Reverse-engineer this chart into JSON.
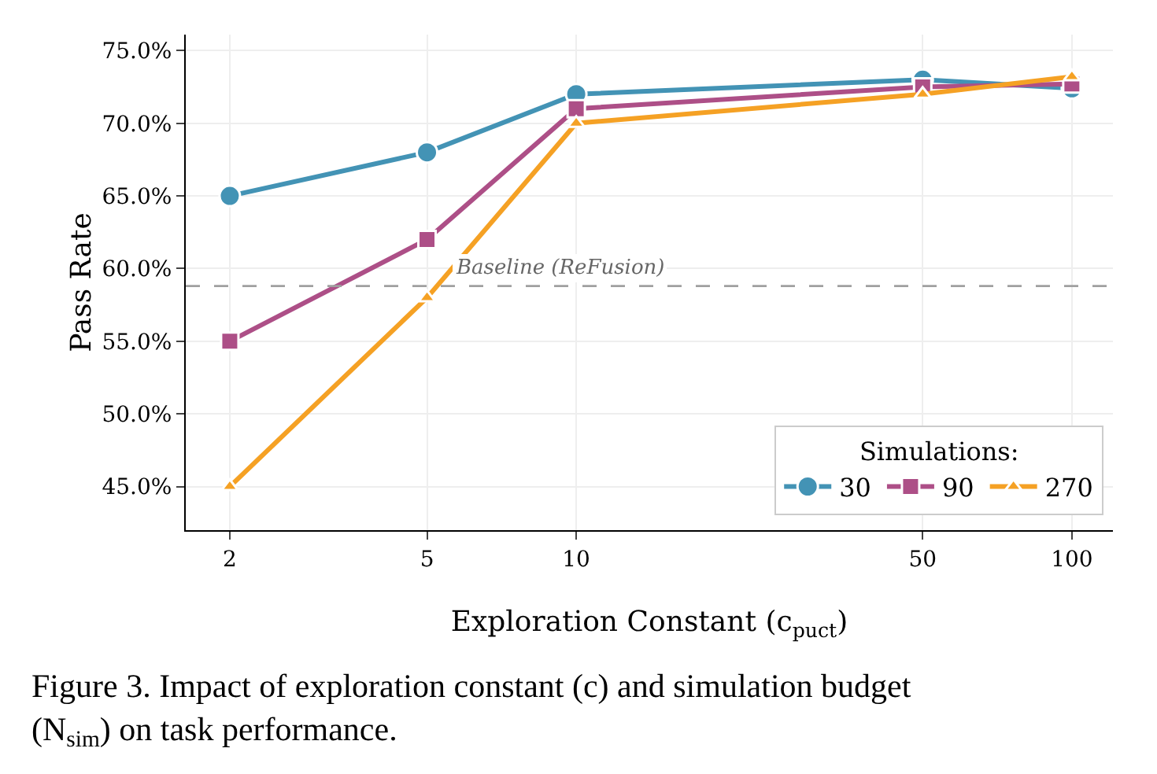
{
  "chart_data": {
    "type": "line",
    "xlabel": "Exploration Constant (c$_{puct}$)",
    "ylabel": "Pass Rate",
    "legend_title": "Simulations:",
    "legend": "bottom right",
    "grid": true,
    "log": "x",
    "line_style": "solid",
    "x": [
      2,
      5,
      10,
      50,
      100
    ],
    "xlim": [
      1.63,
      121
    ],
    "xticks": [
      2,
      5,
      10,
      50,
      100
    ],
    "ylim": [
      42,
      76.1
    ],
    "yticks": [
      {
        "value": 45,
        "label": "45.0%"
      },
      {
        "value": 50,
        "label": "50.0%"
      },
      {
        "value": 55,
        "label": "55.0%"
      },
      {
        "value": 60,
        "label": "60.0%"
      },
      {
        "value": 65,
        "label": "65.0%"
      },
      {
        "value": 70,
        "label": "70.0%"
      },
      {
        "value": 75,
        "label": "75.0%"
      }
    ],
    "series": [
      {
        "name": "30",
        "color": "#4393b5",
        "marker": "circle",
        "values": [
          65,
          68,
          72,
          73,
          72.4
        ]
      },
      {
        "name": "90",
        "color": "#ad4f87",
        "marker": "square",
        "values": [
          55,
          62,
          71,
          72.5,
          72.7
        ]
      },
      {
        "name": "270",
        "color": "#f5a124",
        "marker": "triangle",
        "values": [
          45,
          58,
          70,
          72,
          73.2
        ]
      }
    ],
    "ref_lines": [
      {
        "axis": "y",
        "value": 58.8,
        "label": "Baseline (ReFusion)",
        "color": "#a0a0a0",
        "line_style": "dashed"
      }
    ],
    "annotations": [
      "Figure 3. Impact of exploration constant (c) and simulation budget (N$_{sim}$) on task performance."
    ]
  }
}
